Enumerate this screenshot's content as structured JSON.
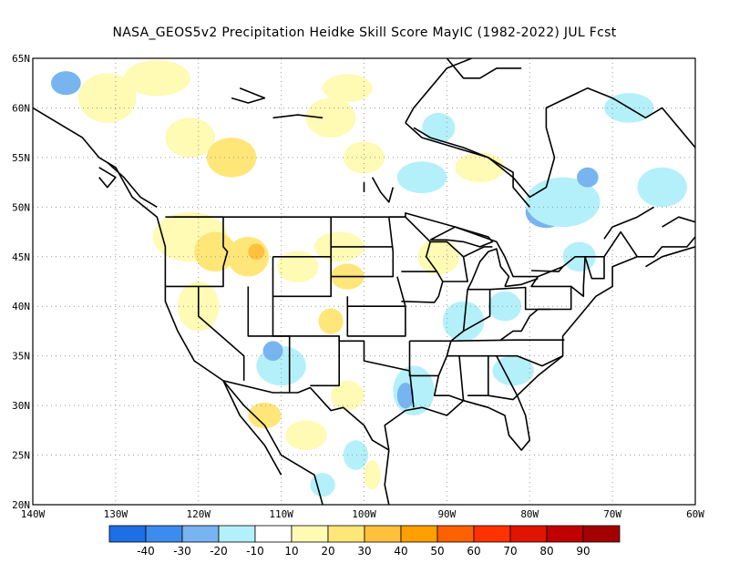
{
  "title": "NASA_GEOS5v2  Precipitation Heidke Skill Score MayIC (1982-2022) JUL Fcst",
  "map": {
    "lon_range": [
      -140,
      -60
    ],
    "lat_range": [
      20,
      65
    ],
    "lat_ticks": [
      {
        "value": 65,
        "label": "65N"
      },
      {
        "value": 60,
        "label": "60N"
      },
      {
        "value": 55,
        "label": "55N"
      },
      {
        "value": 50,
        "label": "50N"
      },
      {
        "value": 45,
        "label": "45N"
      },
      {
        "value": 40,
        "label": "40N"
      },
      {
        "value": 35,
        "label": "35N"
      },
      {
        "value": 30,
        "label": "30N"
      },
      {
        "value": 25,
        "label": "25N"
      },
      {
        "value": 20,
        "label": "20N"
      }
    ],
    "lon_ticks": [
      {
        "value": -140,
        "label": "140W"
      },
      {
        "value": -130,
        "label": "130W"
      },
      {
        "value": -120,
        "label": "120W"
      },
      {
        "value": -110,
        "label": "110W"
      },
      {
        "value": -100,
        "label": "100W"
      },
      {
        "value": -90,
        "label": "90W"
      },
      {
        "value": -80,
        "label": "80W"
      },
      {
        "value": -70,
        "label": "70W"
      },
      {
        "value": -60,
        "label": "60W"
      }
    ],
    "gridlines": "dotted"
  },
  "colorbar": {
    "colors": [
      "#1e6ee6",
      "#3c8cf0",
      "#78b4f0",
      "#b4f0fa",
      "#ffffff",
      "#fffab4",
      "#ffe678",
      "#ffc03c",
      "#ffa000",
      "#ff6000",
      "#ff3200",
      "#e11400",
      "#c00000",
      "#a50000"
    ],
    "labels": [
      "-40",
      "-30",
      "-20",
      "-10",
      "10",
      "20",
      "30",
      "40",
      "50",
      "60",
      "70",
      "80",
      "90"
    ]
  },
  "skill_patches": [
    {
      "lon": -136,
      "lat": 62.5,
      "rx": 1.8,
      "ry": 1.2,
      "color": "#78b4f0"
    },
    {
      "lon": -131,
      "lat": 61,
      "rx": 3.5,
      "ry": 2.5,
      "color": "#fffab4"
    },
    {
      "lon": -125,
      "lat": 63,
      "rx": 4,
      "ry": 1.8,
      "color": "#fffab4"
    },
    {
      "lon": -121,
      "lat": 57,
      "rx": 3,
      "ry": 2,
      "color": "#fffab4"
    },
    {
      "lon": -116,
      "lat": 55,
      "rx": 3,
      "ry": 2,
      "color": "#ffe678"
    },
    {
      "lon": -104,
      "lat": 59,
      "rx": 3,
      "ry": 2,
      "color": "#fffab4"
    },
    {
      "lon": -100,
      "lat": 55,
      "rx": 2.5,
      "ry": 1.6,
      "color": "#fffab4"
    },
    {
      "lon": -102,
      "lat": 62,
      "rx": 3,
      "ry": 1.4,
      "color": "#fffab4"
    },
    {
      "lon": -91,
      "lat": 58,
      "rx": 2,
      "ry": 1.5,
      "color": "#b4f0fa"
    },
    {
      "lon": -93,
      "lat": 53,
      "rx": 3,
      "ry": 1.6,
      "color": "#b4f0fa"
    },
    {
      "lon": -78,
      "lat": 49.5,
      "rx": 2.5,
      "ry": 1.6,
      "color": "#78b4f0"
    },
    {
      "lon": -76,
      "lat": 50.5,
      "rx": 4.5,
      "ry": 2.5,
      "color": "#b4f0fa"
    },
    {
      "lon": -73,
      "lat": 53,
      "rx": 1.3,
      "ry": 1,
      "color": "#78b4f0"
    },
    {
      "lon": -64,
      "lat": 52,
      "rx": 3,
      "ry": 2,
      "color": "#b4f0fa"
    },
    {
      "lon": -68,
      "lat": 60,
      "rx": 3,
      "ry": 1.5,
      "color": "#b4f0fa"
    },
    {
      "lon": -86,
      "lat": 54,
      "rx": 3,
      "ry": 1.5,
      "color": "#fffab4"
    },
    {
      "lon": -121,
      "lat": 47,
      "rx": 4.5,
      "ry": 2.5,
      "color": "#fffab4"
    },
    {
      "lon": -118,
      "lat": 45.5,
      "rx": 2.5,
      "ry": 2,
      "color": "#ffe678"
    },
    {
      "lon": -114,
      "lat": 45,
      "rx": 2.5,
      "ry": 2,
      "color": "#ffe678"
    },
    {
      "lon": -113,
      "lat": 45.5,
      "rx": 1,
      "ry": 0.8,
      "color": "#ffc03c"
    },
    {
      "lon": -120,
      "lat": 40,
      "rx": 2.5,
      "ry": 2.5,
      "color": "#fffab4"
    },
    {
      "lon": -108,
      "lat": 44,
      "rx": 2.5,
      "ry": 1.6,
      "color": "#fffab4"
    },
    {
      "lon": -103,
      "lat": 46,
      "rx": 3,
      "ry": 1.5,
      "color": "#fffab4"
    },
    {
      "lon": -102,
      "lat": 43,
      "rx": 2,
      "ry": 1.3,
      "color": "#ffe678"
    },
    {
      "lon": -104,
      "lat": 38.5,
      "rx": 1.5,
      "ry": 1.3,
      "color": "#ffe678"
    },
    {
      "lon": -110,
      "lat": 34,
      "rx": 3,
      "ry": 2,
      "color": "#b4f0fa"
    },
    {
      "lon": -111,
      "lat": 35.5,
      "rx": 1.2,
      "ry": 1,
      "color": "#78b4f0"
    },
    {
      "lon": -94,
      "lat": 31.5,
      "rx": 2.5,
      "ry": 2.5,
      "color": "#b4f0fa"
    },
    {
      "lon": -95,
      "lat": 31,
      "rx": 1,
      "ry": 1.3,
      "color": "#78b4f0"
    },
    {
      "lon": -88,
      "lat": 38.5,
      "rx": 2.5,
      "ry": 2,
      "color": "#b4f0fa"
    },
    {
      "lon": -83,
      "lat": 40,
      "rx": 2,
      "ry": 1.5,
      "color": "#b4f0fa"
    },
    {
      "lon": -82,
      "lat": 33.5,
      "rx": 2.5,
      "ry": 1.5,
      "color": "#b4f0fa"
    },
    {
      "lon": -91,
      "lat": 45,
      "rx": 2.5,
      "ry": 1.8,
      "color": "#fffab4"
    },
    {
      "lon": -102,
      "lat": 31,
      "rx": 2,
      "ry": 1.5,
      "color": "#fffab4"
    },
    {
      "lon": -112,
      "lat": 29,
      "rx": 2,
      "ry": 1.3,
      "color": "#ffe678"
    },
    {
      "lon": -107,
      "lat": 27,
      "rx": 2.5,
      "ry": 1.5,
      "color": "#fffab4"
    },
    {
      "lon": -101,
      "lat": 25,
      "rx": 1.5,
      "ry": 1.5,
      "color": "#b4f0fa"
    },
    {
      "lon": -99,
      "lat": 23,
      "rx": 1,
      "ry": 1.5,
      "color": "#fffab4"
    },
    {
      "lon": -105,
      "lat": 22,
      "rx": 1.5,
      "ry": 1.2,
      "color": "#b4f0fa"
    },
    {
      "lon": -74,
      "lat": 45,
      "rx": 2,
      "ry": 1.5,
      "color": "#b4f0fa"
    }
  ]
}
